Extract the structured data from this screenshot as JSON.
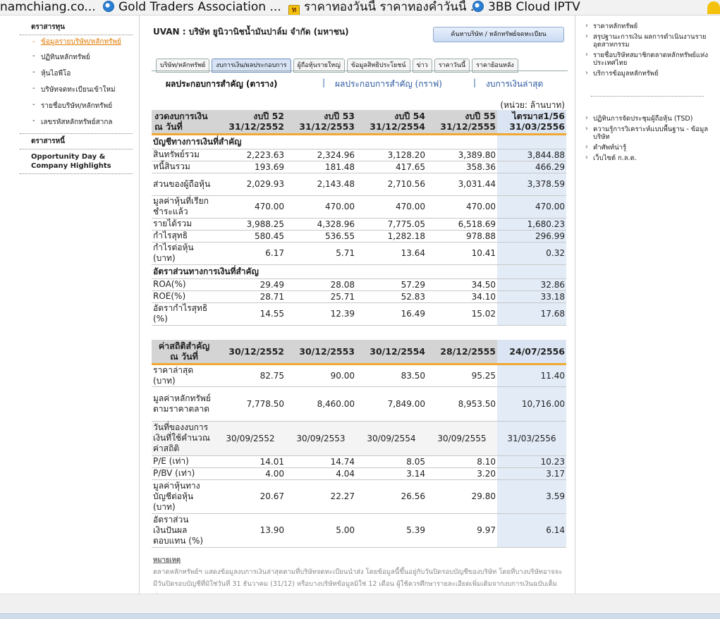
{
  "bookmarks": [
    {
      "label": "namchiang.co...",
      "icon": "none"
    },
    {
      "label": "Gold Traders Association  ...",
      "icon": "ie-icon"
    },
    {
      "label": "ราคาทองวันนี้ ราคาทองคำวันนี้ ...",
      "icon": "gold-icon"
    },
    {
      "label": "3BB Cloud IPTV",
      "icon": "ie-icon"
    }
  ],
  "leftnav": {
    "head1": "ตราสารทุน",
    "items": [
      "ข้อมูลรายบริษัท/หลักทรัพย์",
      "ปฏิทินหลักทรัพย์",
      "หุ้นไอพีโอ",
      "บริษัทจดทะเบียนเข้าใหม่",
      "รายชื่อบริษัท/หลักทรัพย์",
      "เลขรหัสหลักทรัพย์สากล"
    ],
    "head2": "ตราสารหนี้",
    "bold_link": "Opportunity Day & Company Highlights"
  },
  "main": {
    "title": "UVAN : บริษัท ยูนิวานิชน้ำมันปาล์ม จำกัด (มหาชน)",
    "search_button": "ค้นหาบริษัท / หลักทรัพย์จดทะเบียน",
    "tabs": [
      "บริษัท/หลักทรัพย์",
      "งบการเงิน/ผลประกอบการ",
      "ผู้ถือหุ้นรายใหญ่",
      "ข้อมูลสิทธิประโยชน์",
      "ข่าว",
      "ราคาวันนี้",
      "ราคาย้อนหลัง"
    ],
    "subnav": [
      "ผลประกอบการสำคัญ (ตาราง)",
      "|",
      "ผลประกอบการสำคัญ (กราฟ)",
      "|",
      "งบการเงินล่าสุด"
    ],
    "unit_note": "(หน่วย: ล้านบาท)"
  },
  "table1": {
    "header_label": "งวดงบการเงิน ณ วันที่",
    "columns": [
      {
        "period": "งบปี 52",
        "date": "31/12/2552"
      },
      {
        "period": "งบปี 53",
        "date": "31/12/2553"
      },
      {
        "period": "งบปี 54",
        "date": "31/12/2554"
      },
      {
        "period": "งบปี 55",
        "date": "31/12/2555"
      },
      {
        "period": "ไตรมาส1/56",
        "date": "31/03/2556"
      }
    ],
    "section1": "บัญชีทางการเงินที่สำคัญ",
    "rows1": [
      {
        "label": "สินทรัพย์รวม",
        "values": [
          "2,223.63",
          "2,324.96",
          "3,128.20",
          "3,389.80",
          "3,844.88"
        ]
      },
      {
        "label": "หนี้สินรวม",
        "values": [
          "193.69",
          "181.48",
          "417.65",
          "358.36",
          "466.29"
        ]
      },
      {
        "label": "ส่วนของผู้ถือหุ้น",
        "values": [
          "2,029.93",
          "2,143.48",
          "2,710.56",
          "3,031.44",
          "3,378.59"
        ]
      },
      {
        "label": "มูลค่าหุ้นที่เรียกชำระแล้ว",
        "values": [
          "470.00",
          "470.00",
          "470.00",
          "470.00",
          "470.00"
        ]
      },
      {
        "label": "รายได้รวม",
        "values": [
          "3,988.25",
          "4,328.96",
          "7,775.05",
          "6,518.69",
          "1,680.23"
        ]
      },
      {
        "label": "กำไรสุทธิ",
        "values": [
          "580.45",
          "536.55",
          "1,282.18",
          "978.88",
          "296.99"
        ]
      },
      {
        "label": "กำไรต่อหุ้น (บาท)",
        "values": [
          "6.17",
          "5.71",
          "13.64",
          "10.41",
          "0.32"
        ]
      }
    ],
    "section2": "อัตราส่วนทางการเงินที่สำคัญ",
    "rows2": [
      {
        "label": "ROA(%)",
        "values": [
          "29.49",
          "28.08",
          "57.29",
          "34.50",
          "32.86"
        ]
      },
      {
        "label": "ROE(%)",
        "values": [
          "28.71",
          "25.71",
          "52.83",
          "34.10",
          "33.18"
        ]
      },
      {
        "label": "อัตรากำไรสุทธิ (%)",
        "values": [
          "14.55",
          "12.39",
          "16.49",
          "15.02",
          "17.68"
        ]
      }
    ]
  },
  "table2": {
    "header_label": "ค่าสถิติสำคัญ ณ วันที่",
    "columns": [
      "30/12/2552",
      "30/12/2553",
      "30/12/2554",
      "28/12/2555",
      "24/07/2556"
    ],
    "rows": [
      {
        "label": "ราคาล่าสุด (บาท)",
        "values": [
          "82.75",
          "90.00",
          "83.50",
          "95.25",
          "11.40"
        ]
      },
      {
        "label": "มูลค่าหลักทรัพย์ตามราคาตลาด",
        "values": [
          "7,778.50",
          "8,460.00",
          "7,849.00",
          "8,953.50",
          "10,716.00"
        ]
      },
      {
        "label": "วันที่ของงบการเงินที่ใช้คำนวณค่าสถิติ",
        "values": [
          "30/09/2552",
          "30/09/2553",
          "30/09/2554",
          "30/09/2555",
          "31/03/2556"
        ]
      },
      {
        "label": "P/E (เท่า)",
        "values": [
          "14.01",
          "14.74",
          "8.05",
          "8.10",
          "10.23"
        ]
      },
      {
        "label": "P/BV (เท่า)",
        "values": [
          "4.00",
          "4.04",
          "3.14",
          "3.20",
          "3.17"
        ]
      },
      {
        "label": "มูลค่าหุ้นทางบัญชีต่อหุ้น (บาท)",
        "values": [
          "20.67",
          "22.27",
          "26.56",
          "29.80",
          "3.59"
        ]
      },
      {
        "label": "อัตราส่วนเงินปันผลตอบแทน (%)",
        "values": [
          "13.90",
          "5.00",
          "5.39",
          "9.97",
          "6.14"
        ]
      }
    ]
  },
  "note": {
    "title": "หมายเหตุ",
    "text": "ตลาดหลักทรัพย์ฯ แสดงข้อมูลงบการเงินล่าสุดตามที่บริษัทจดทะเบียนนำส่ง โดยข้อมูลนี้ขึ้นอยู่กับวันปิดรอบบัญชีของบริษัท โดยที่บางบริษัทอาจจะมีวันปิดรอบบัญชีที่มิใช่วันที่ 31 ธันวาคม (31/12) หรือบางบริษัทข้อมูลมิใช่ 12 เดือน ผู้ใช้ควรศึกษารายละเอียดเพิ่มเติมจากงบการเงินฉบับเต็มประกอบ"
  },
  "rightnav": {
    "group1": [
      "ราคาหลักทรัพย์",
      "สรุปฐานะการเงิน ผลการดำเนินงานรายอุตสาหกรรม",
      "รายชื่อบริษัทสมาชิกตลาดหลักทรัพย์แห่งประเทศไทย",
      "บริการข้อมูลหลักทรัพย์"
    ],
    "group2": [
      "ปฏิทินการจัดประชุมผู้ถือหุ้น (TSD)",
      "ความรู้การวิเคราะห์แบบพื้นฐาน - ข้อมูลบริษัท",
      "คำศัพท์น่ารู้",
      "เว็บไซต์ ก.ล.ต."
    ]
  },
  "colors": {
    "accent_orange": "#f0a830",
    "highlight_blue": "#e3ebf7",
    "header_gray": "#d4d4d4"
  }
}
